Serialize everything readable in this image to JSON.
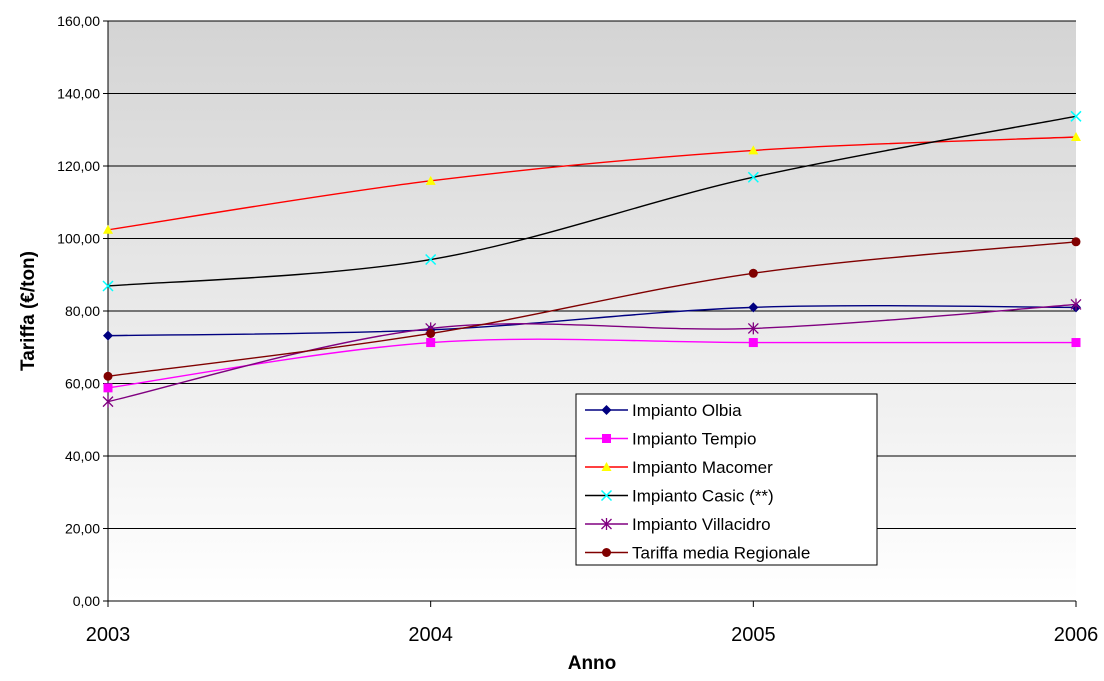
{
  "chart_data": {
    "type": "line",
    "title": "",
    "xlabel": "Anno",
    "ylabel": "Tariffa (€/ton)",
    "categories": [
      "2003",
      "2004",
      "2005",
      "2006"
    ],
    "ylim": [
      0,
      160
    ],
    "y_ticks": [
      "0,00",
      "20,00",
      "40,00",
      "60,00",
      "80,00",
      "100,00",
      "120,00",
      "140,00",
      "160,00"
    ],
    "grid": true,
    "legend_position": "bottom-center",
    "series": [
      {
        "name": "Impianto Olbia",
        "values": [
          73.2,
          74.8,
          81.0,
          81.0
        ],
        "color": "#000080",
        "line_color": "#000080",
        "marker": "diamond"
      },
      {
        "name": "Impianto Tempio",
        "values": [
          58.8,
          71.3,
          71.3,
          71.3
        ],
        "color": "#ff00ff",
        "line_color": "#ff00ff",
        "marker": "square"
      },
      {
        "name": "Impianto Macomer",
        "values": [
          102.4,
          115.9,
          124.3,
          128.0
        ],
        "color": "#ffff00",
        "line_color": "#ff0000",
        "marker": "triangle"
      },
      {
        "name": "Impianto Casic (**)",
        "values": [
          86.9,
          94.2,
          116.9,
          133.7
        ],
        "color": "#00ffff",
        "line_color": "#000000",
        "marker": "x"
      },
      {
        "name": "Impianto Villacidro",
        "values": [
          55.0,
          75.2,
          75.2,
          81.8
        ],
        "color": "#800080",
        "line_color": "#800080",
        "marker": "star"
      },
      {
        "name": "Tariffa media Regionale",
        "values": [
          62.0,
          73.8,
          90.4,
          99.1
        ],
        "color": "#800000",
        "line_color": "#800000",
        "marker": "circle"
      }
    ]
  }
}
